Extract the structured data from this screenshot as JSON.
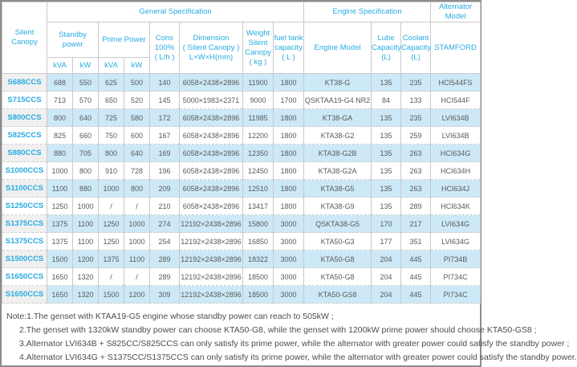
{
  "table": {
    "header": {
      "silent_canopy": "Silent Canopy",
      "general_spec": "General Specification",
      "engine_spec": "Engine Specification",
      "alternator_model": "Alternator Model",
      "standby_power": "Standby power",
      "prime_power": "Prime Power",
      "kva": "kVA",
      "kw": "kW",
      "cons": "Cons\n100%\n( L/h )",
      "dimension": "Dimension\n( Silent Canopy )\nL×W×H(mm)",
      "weight": "Weight\nSilent\nCanopy\n( kg )",
      "fuel_tank": "fuel tank\ncapacity\n( L )",
      "engine_model": "Engine Model",
      "lube_capacity": "Lube\nCapacity\n(L)",
      "coolant_capacity": "Coolant\nCapacity\n(L)",
      "stamford": "STAMFORD"
    },
    "columns": [
      "model",
      "standby_kva",
      "standby_kw",
      "prime_kva",
      "prime_kw",
      "cons_100",
      "dimension",
      "weight",
      "fuel_tank",
      "engine_model",
      "lube_capacity",
      "coolant_capacity",
      "alternator"
    ],
    "rows": [
      [
        "S688CCS",
        "688",
        "550",
        "625",
        "500",
        "140",
        "6058×2438×2896",
        "11900",
        "1800",
        "KT38-G",
        "135",
        "235",
        "HCI544FS"
      ],
      [
        "S715CCS",
        "713",
        "570",
        "650",
        "520",
        "145",
        "5000×1983×2371",
        "9000",
        "1700",
        "QSKTAA19-G4 NR2",
        "84",
        "133",
        "HCI544F"
      ],
      [
        "S800CCS",
        "800",
        "640",
        "725",
        "580",
        "172",
        "6058×2438×2896",
        "11985",
        "1800",
        "KT38-GA",
        "135",
        "235",
        "LVI634B"
      ],
      [
        "S825CCS",
        "825",
        "660",
        "750",
        "600",
        "167",
        "6058×2438×2896",
        "12200",
        "1800",
        "KTA38-G2",
        "135",
        "259",
        "LVI634B"
      ],
      [
        "S880CCS",
        "880",
        "705",
        "800",
        "640",
        "169",
        "6058×2438×2896",
        "12350",
        "1800",
        "KTA38-G2B",
        "135",
        "263",
        "HCI634G"
      ],
      [
        "S1000CCS",
        "1000",
        "800",
        "910",
        "728",
        "196",
        "6058×2438×2896",
        "12450",
        "1800",
        "KTA38-G2A",
        "135",
        "263",
        "HCI634H"
      ],
      [
        "S1100CCS",
        "1100",
        "880",
        "1000",
        "800",
        "209",
        "6058×2438×2896",
        "12510",
        "1800",
        "KTA38-G5",
        "135",
        "263",
        "HCI634J"
      ],
      [
        "S1250CCS",
        "1250",
        "1000",
        "/",
        "/",
        "210",
        "6058×2438×2896",
        "13417",
        "1800",
        "KTA38-G9",
        "135",
        "289",
        "HCI634K"
      ],
      [
        "S1375CCS",
        "1375",
        "1100",
        "1250",
        "1000",
        "274",
        "12192×2438×2896",
        "15800",
        "3000",
        "QSKTA38-G5",
        "170",
        "217",
        "LVI634G"
      ],
      [
        "S1375CCS",
        "1375",
        "1100",
        "1250",
        "1000",
        "254",
        "12192×2438×2896",
        "16850",
        "3000",
        "KTA50-G3",
        "177",
        "351",
        "LVI634G"
      ],
      [
        "S1500CCS",
        "1500",
        "1200",
        "1375",
        "1100",
        "289",
        "12192×2438×2896",
        "18322",
        "3000",
        "KTA50-G8",
        "204",
        "445",
        "PI734B"
      ],
      [
        "S1650CCS",
        "1650",
        "1320",
        "/",
        "/",
        "289",
        "12192×2438×2896",
        "18500",
        "3000",
        "KTA50-G8",
        "204",
        "445",
        "PI734C"
      ],
      [
        "S1650CCS",
        "1650",
        "1320",
        "1500",
        "1200",
        "309",
        "12192×2438×2896",
        "18500",
        "3000",
        "KTA50-GS8",
        "204",
        "445",
        "PI734C"
      ]
    ],
    "colors": {
      "accent_text": "#29abe2",
      "row_stripe": "#cde9f7",
      "model_column_bg": "#f0f0f0",
      "data_text": "#58595b"
    }
  },
  "notes": [
    "Note:1.The genset with KTAA19-G5 engine whose standby power can reach to 505kW ;",
    "2.The genset with 1320kW standby power can choose KTA50-G8, while the genset with 1200kW prime power should choose KTA50-GS8 ;",
    "3.Alternator LVI634B + S825CC/S825CCS can only satisfy its prime power, while the alternator with greater power could satisfy the standby power ;",
    "4.Alternator LVI634G + S1375CC/S1375CCS can only satisfy its prime power, while the alternator with greater power could satisfy the standby power."
  ]
}
